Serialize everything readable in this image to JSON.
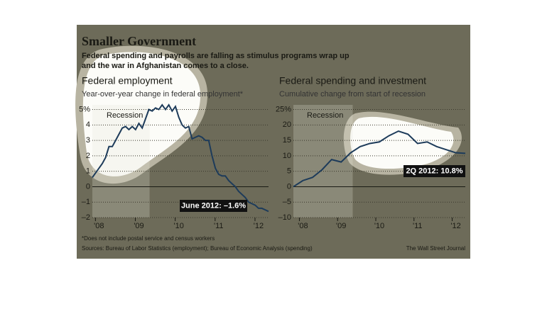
{
  "header": {
    "title": "Smaller Government",
    "subtitle_lines": [
      "Federal spending and payrolls are falling as stimulus programs wrap up",
      "and the war in Afghanistan comes to a close."
    ]
  },
  "chart_data": [
    {
      "type": "line",
      "title": "Federal employment",
      "subtitle": "Year-over-year change in federal employment*",
      "recession_label": "Recession",
      "categories": [
        null,
        null,
        "'08",
        null,
        null,
        null,
        null,
        null,
        null,
        null,
        null,
        null,
        null,
        null,
        "'09",
        null,
        null,
        null,
        null,
        null,
        null,
        null,
        null,
        null,
        null,
        null,
        "'10",
        null,
        null,
        null,
        null,
        null,
        null,
        null,
        null,
        null,
        null,
        null,
        "'11",
        null,
        null,
        null,
        null,
        null,
        null,
        null,
        null,
        null,
        null,
        null,
        "'12",
        null,
        null,
        null
      ],
      "series": [
        {
          "name": "Federal employment",
          "color": "#1d3b5a",
          "values": [
            0.6,
            0.9,
            1.2,
            1.5,
            1.9,
            2.6,
            2.6,
            3.0,
            3.4,
            3.8,
            3.9,
            3.7,
            3.9,
            3.7,
            4.1,
            3.8,
            4.4,
            5.0,
            4.9,
            5.1,
            5.0,
            5.3,
            5.0,
            5.3,
            4.9,
            5.2,
            4.5,
            4.0,
            3.8,
            3.9,
            3.1,
            3.2,
            3.3,
            3.2,
            3.0,
            3.0,
            2.0,
            1.2,
            0.8,
            0.7,
            0.7,
            0.4,
            0.2,
            0.0,
            -0.3,
            -0.5,
            -0.7,
            -1.0,
            -1.1,
            -1.2,
            -1.4,
            -1.4,
            -1.5,
            -1.6
          ]
        }
      ],
      "annotation": "June 2012: –1.6%",
      "ylim": [
        -2,
        5.3
      ],
      "yticks": [
        {
          "value": -2,
          "label": "–2"
        },
        {
          "value": -1,
          "label": "–1"
        },
        0,
        1,
        2,
        3,
        4,
        {
          "value": 5,
          "label": "5%"
        }
      ],
      "grid": true
    },
    {
      "type": "line",
      "title": "Federal spending and investment",
      "subtitle": "Cumulative change from start of recession",
      "recession_label": "Recession",
      "categories": [
        null,
        "'08",
        null,
        null,
        null,
        "'09",
        null,
        null,
        null,
        "'10",
        null,
        null,
        null,
        "'11",
        null,
        null,
        null,
        "'12",
        null
      ],
      "series": [
        {
          "name": "Federal spending and investment",
          "color": "#1d3b5a",
          "values": [
            0,
            2,
            3,
            5.5,
            8.8,
            8,
            11,
            13,
            14,
            14.5,
            16.5,
            18,
            17,
            14,
            14.5,
            13,
            12,
            11,
            10.8
          ]
        }
      ],
      "annotation": "2Q 2012: 10.8%",
      "ylim": [
        -10,
        26.5
      ],
      "yticks": [
        {
          "value": -10,
          "label": "–10"
        },
        {
          "value": -5,
          "label": "–5"
        },
        0,
        5,
        10,
        15,
        20,
        {
          "value": 25,
          "label": "25%"
        }
      ],
      "grid": true
    }
  ],
  "footer": {
    "note": "*Does not include postal service and census workers",
    "sources": "Sources: Bureau of Labor Statistics (employment); Bureau of Economic Analysis (spending)",
    "credit": "The Wall Street Journal"
  }
}
